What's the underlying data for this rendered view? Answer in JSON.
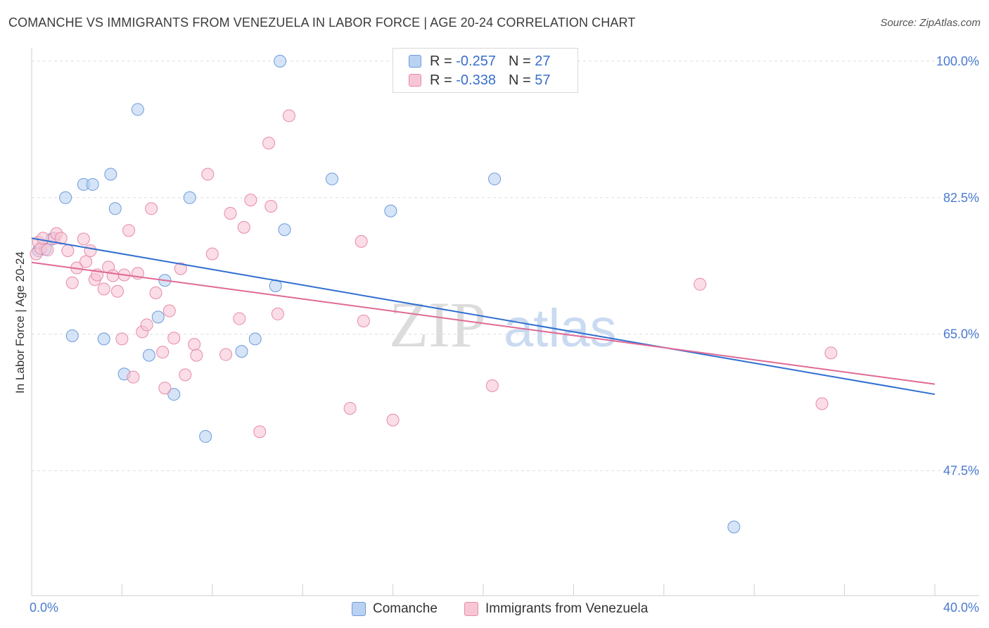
{
  "header": {
    "title": "COMANCHE VS IMMIGRANTS FROM VENEZUELA IN LABOR FORCE | AGE 20-24 CORRELATION CHART",
    "source": "Source: ZipAtlas.com"
  },
  "legend": {
    "rows": [
      {
        "r_label": "R =",
        "r_value": "-0.257",
        "n_label": "N =",
        "n_value": "27"
      },
      {
        "r_label": "R =",
        "r_value": "-0.338",
        "n_label": "N =",
        "n_value": "57"
      }
    ]
  },
  "watermark": {
    "zip": "ZIP",
    "atlas": "atlas"
  },
  "colors": {
    "comanche_fill": "#b9d2f2",
    "comanche_stroke": "#6d9bdc",
    "comanche_line": "#2f6fd0",
    "venezuela_fill": "#f7c6d5",
    "venezuela_stroke": "#e88aa8",
    "venezuela_line": "#e06a94",
    "tick_text": "#4a7bd0",
    "grid": "#dddddd"
  },
  "chart_data": {
    "type": "scatter",
    "title": "COMANCHE VS IMMIGRANTS FROM VENEZUELA IN LABOR FORCE | AGE 20-24 CORRELATION CHART",
    "xlabel": "",
    "ylabel": "In Labor Force | Age 20-24",
    "xlim": [
      0,
      40
    ],
    "ylim": [
      31.5,
      101.7
    ],
    "x_tick_labels": [
      "0.0%",
      "40.0%"
    ],
    "y_ticks": [
      47.5,
      65.0,
      82.5,
      100.0
    ],
    "y_tick_labels": [
      "47.5%",
      "65.0%",
      "82.5%",
      "100.0%"
    ],
    "grid": true,
    "legend_position": "bottom",
    "series": [
      {
        "name": "Comanche",
        "color_key": "comanche",
        "trend": {
          "x": [
            0.0,
            40.0
          ],
          "y": [
            77.3,
            57.3
          ]
        },
        "points": [
          {
            "x": 0.3,
            "y": 75.7
          },
          {
            "x": 0.6,
            "y": 75.9
          },
          {
            "x": 0.9,
            "y": 77.2
          },
          {
            "x": 1.5,
            "y": 82.5
          },
          {
            "x": 1.8,
            "y": 64.8
          },
          {
            "x": 2.3,
            "y": 84.2
          },
          {
            "x": 2.7,
            "y": 84.2
          },
          {
            "x": 3.2,
            "y": 64.4
          },
          {
            "x": 3.5,
            "y": 85.5
          },
          {
            "x": 3.7,
            "y": 81.1
          },
          {
            "x": 4.1,
            "y": 59.9
          },
          {
            "x": 4.7,
            "y": 93.8
          },
          {
            "x": 5.2,
            "y": 62.3
          },
          {
            "x": 5.6,
            "y": 67.2
          },
          {
            "x": 5.9,
            "y": 71.9
          },
          {
            "x": 6.3,
            "y": 57.3
          },
          {
            "x": 7.0,
            "y": 82.5
          },
          {
            "x": 7.7,
            "y": 51.9
          },
          {
            "x": 9.3,
            "y": 62.8
          },
          {
            "x": 9.9,
            "y": 64.4
          },
          {
            "x": 10.8,
            "y": 71.2
          },
          {
            "x": 11.2,
            "y": 78.4
          },
          {
            "x": 11.0,
            "y": 100.0
          },
          {
            "x": 13.3,
            "y": 84.9
          },
          {
            "x": 15.9,
            "y": 80.8
          },
          {
            "x": 20.5,
            "y": 84.9
          },
          {
            "x": 31.1,
            "y": 40.3
          }
        ]
      },
      {
        "name": "Immigrants from Venezuela",
        "color_key": "venezuela",
        "trend": {
          "x": [
            0.0,
            40.0
          ],
          "y": [
            74.2,
            58.6
          ]
        },
        "points": [
          {
            "x": 0.2,
            "y": 75.3
          },
          {
            "x": 0.3,
            "y": 76.8
          },
          {
            "x": 0.4,
            "y": 76.0
          },
          {
            "x": 0.5,
            "y": 77.3
          },
          {
            "x": 0.7,
            "y": 75.8
          },
          {
            "x": 1.0,
            "y": 77.3
          },
          {
            "x": 1.1,
            "y": 77.9
          },
          {
            "x": 1.3,
            "y": 77.3
          },
          {
            "x": 1.6,
            "y": 75.7
          },
          {
            "x": 1.8,
            "y": 71.6
          },
          {
            "x": 2.0,
            "y": 73.5
          },
          {
            "x": 2.3,
            "y": 77.2
          },
          {
            "x": 2.4,
            "y": 74.3
          },
          {
            "x": 2.6,
            "y": 75.7
          },
          {
            "x": 2.8,
            "y": 72.0
          },
          {
            "x": 2.9,
            "y": 72.6
          },
          {
            "x": 3.2,
            "y": 70.8
          },
          {
            "x": 3.4,
            "y": 73.6
          },
          {
            "x": 3.6,
            "y": 72.5
          },
          {
            "x": 3.8,
            "y": 70.5
          },
          {
            "x": 4.0,
            "y": 64.4
          },
          {
            "x": 4.1,
            "y": 72.6
          },
          {
            "x": 4.3,
            "y": 78.3
          },
          {
            "x": 4.5,
            "y": 59.5
          },
          {
            "x": 4.7,
            "y": 72.8
          },
          {
            "x": 4.9,
            "y": 65.3
          },
          {
            "x": 5.1,
            "y": 66.2
          },
          {
            "x": 5.3,
            "y": 81.1
          },
          {
            "x": 5.5,
            "y": 70.3
          },
          {
            "x": 5.8,
            "y": 62.7
          },
          {
            "x": 5.9,
            "y": 58.1
          },
          {
            "x": 6.1,
            "y": 68.0
          },
          {
            "x": 6.3,
            "y": 64.5
          },
          {
            "x": 6.6,
            "y": 73.4
          },
          {
            "x": 6.8,
            "y": 59.8
          },
          {
            "x": 7.2,
            "y": 63.7
          },
          {
            "x": 7.3,
            "y": 62.3
          },
          {
            "x": 7.8,
            "y": 85.5
          },
          {
            "x": 8.0,
            "y": 75.3
          },
          {
            "x": 8.6,
            "y": 62.4
          },
          {
            "x": 8.8,
            "y": 80.5
          },
          {
            "x": 9.2,
            "y": 67.0
          },
          {
            "x": 9.4,
            "y": 78.7
          },
          {
            "x": 9.7,
            "y": 82.2
          },
          {
            "x": 10.1,
            "y": 52.5
          },
          {
            "x": 10.5,
            "y": 89.5
          },
          {
            "x": 10.6,
            "y": 81.4
          },
          {
            "x": 10.9,
            "y": 67.6
          },
          {
            "x": 11.4,
            "y": 93.0
          },
          {
            "x": 14.1,
            "y": 55.5
          },
          {
            "x": 14.6,
            "y": 76.9
          },
          {
            "x": 14.7,
            "y": 66.7
          },
          {
            "x": 16.0,
            "y": 54.0
          },
          {
            "x": 20.4,
            "y": 58.4
          },
          {
            "x": 29.6,
            "y": 71.4
          },
          {
            "x": 35.0,
            "y": 56.1
          },
          {
            "x": 35.4,
            "y": 62.6
          }
        ]
      }
    ]
  },
  "bottom_legend": {
    "items": [
      {
        "label": "Comanche"
      },
      {
        "label": "Immigrants from Venezuela"
      }
    ]
  }
}
